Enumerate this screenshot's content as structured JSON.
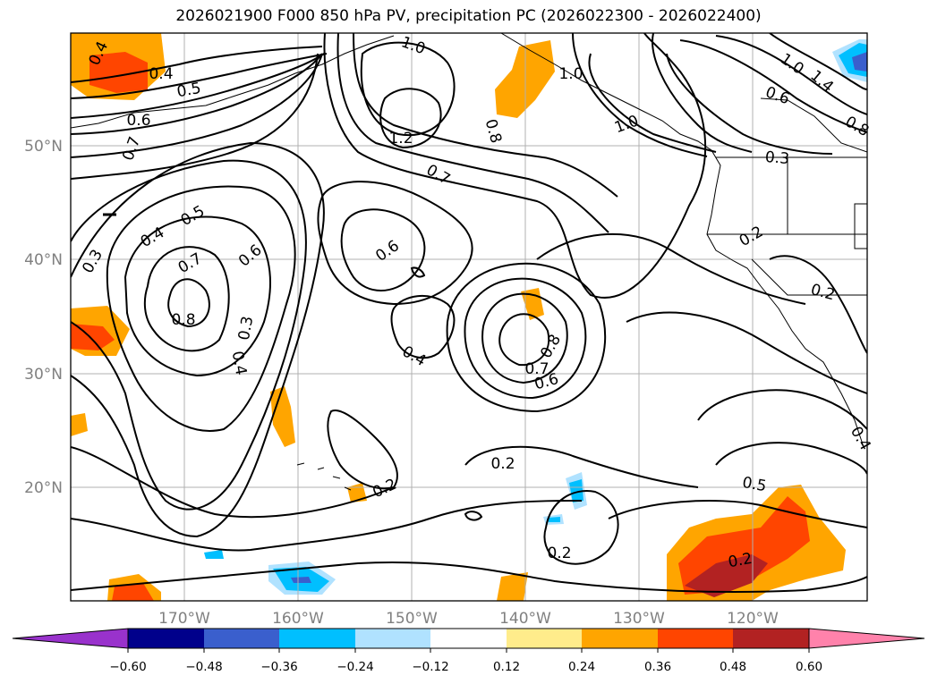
{
  "title": "2026021900 F000 850 hPa PV, precipitation PC (2026022300 - 2026022400)",
  "map": {
    "lat_labels": [
      "50°N",
      "40°N",
      "30°N",
      "20°N"
    ],
    "lon_labels": [
      "170°W",
      "160°W",
      "150°W",
      "140°W",
      "130°W",
      "120°W"
    ],
    "contour_labels": [
      {
        "text": "0.4",
        "rot": -65
      },
      {
        "text": "0.4",
        "rot": 0
      },
      {
        "text": "0.5",
        "rot": -10
      },
      {
        "text": "0.6",
        "rot": 0
      },
      {
        "text": "0.7",
        "rot": -70
      },
      {
        "text": "1.0",
        "rot": 20
      },
      {
        "text": "1.2",
        "rot": 0
      },
      {
        "text": "0.8",
        "rot": 75
      },
      {
        "text": "1.0",
        "rot": 0
      },
      {
        "text": "1.0",
        "rot": -20
      },
      {
        "text": "1.0",
        "rot": 35
      },
      {
        "text": "1.4",
        "rot": 40
      },
      {
        "text": "0.6",
        "rot": 20
      },
      {
        "text": "0.8",
        "rot": 30
      },
      {
        "text": "0.3",
        "rot": 5
      },
      {
        "text": "0.7",
        "rot": 30
      },
      {
        "text": "0.5",
        "rot": -30
      },
      {
        "text": "0.4",
        "rot": -30
      },
      {
        "text": "0.3",
        "rot": -60
      },
      {
        "text": "0.7",
        "rot": -30
      },
      {
        "text": "0.6",
        "rot": -40
      },
      {
        "text": "0.6",
        "rot": -35
      },
      {
        "text": "0.8",
        "rot": 0
      },
      {
        "text": "0.3",
        "rot": -80
      },
      {
        "text": "0.4",
        "rot": 80
      },
      {
        "text": "0.4",
        "rot": 30
      },
      {
        "text": "0.8",
        "rot": -60
      },
      {
        "text": "0.7",
        "rot": 0
      },
      {
        "text": "0.6",
        "rot": -15
      },
      {
        "text": "0.2",
        "rot": -30
      },
      {
        "text": "0.2",
        "rot": 15
      },
      {
        "text": "0.2",
        "rot": 0
      },
      {
        "text": "0.2",
        "rot": -25
      },
      {
        "text": "0.5",
        "rot": 10
      },
      {
        "text": "0.2",
        "rot": 0
      },
      {
        "text": "0.2",
        "rot": -10
      },
      {
        "text": "0.4",
        "rot": 60
      }
    ]
  },
  "colorbar": {
    "ticks": [
      "−0.60",
      "−0.48",
      "−0.36",
      "−0.24",
      "−0.12",
      "0.12",
      "0.24",
      "0.36",
      "0.48",
      "0.60"
    ],
    "colors": [
      "#9932cc",
      "#00008b",
      "#3a5fcd",
      "#00bfff",
      "#b0e2ff",
      "#ffffff",
      "#ffec8b",
      "#ffa500",
      "#ff4500",
      "#b22222",
      "#ff82ab"
    ]
  }
}
